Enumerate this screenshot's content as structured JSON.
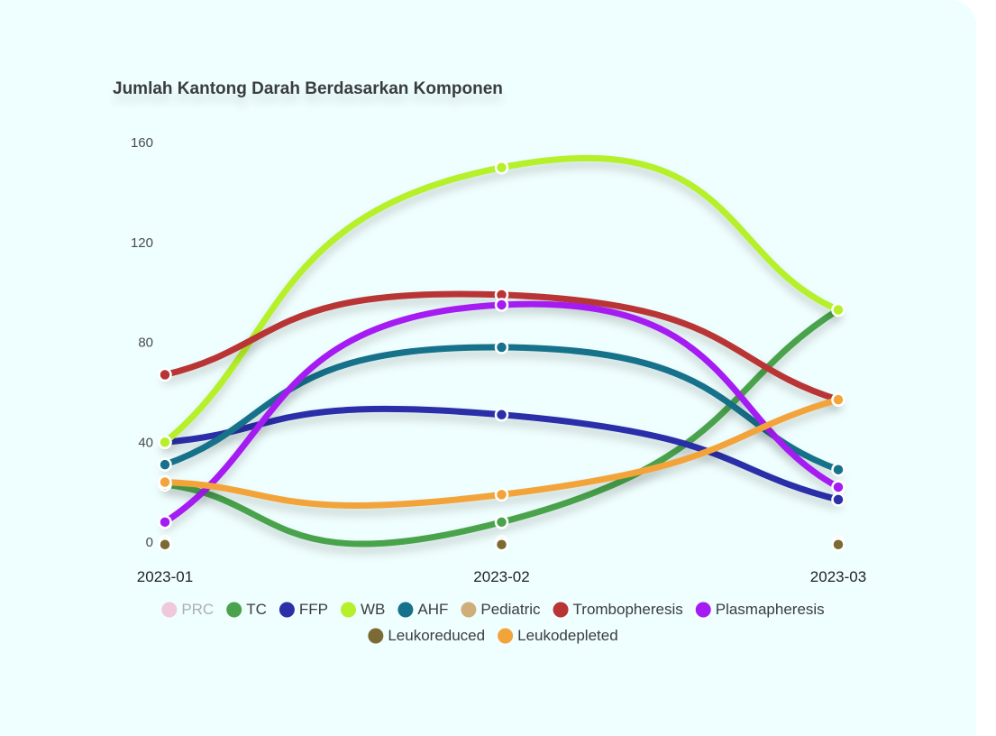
{
  "chart_data": {
    "type": "line",
    "title": "Jumlah Kantong Darah Berdasarkan Komponen",
    "xlabel": "",
    "ylabel": "",
    "categories": [
      "2023-01",
      "2023-02",
      "2023-03"
    ],
    "ylim": [
      0,
      160
    ],
    "yticks": [
      0,
      40,
      80,
      120,
      160
    ],
    "grid": false,
    "curve": "smooth",
    "legend_position": "bottom",
    "series": [
      {
        "name": "PRC",
        "color": "#f0c8dc",
        "hidden": true,
        "values": [
          0,
          0,
          0
        ]
      },
      {
        "name": "TC",
        "color": "#4aa34c",
        "hidden": false,
        "values": [
          23,
          8,
          93
        ]
      },
      {
        "name": "FFP",
        "color": "#2b2fa8",
        "hidden": false,
        "values": [
          40,
          51,
          17
        ]
      },
      {
        "name": "WB",
        "color": "#b5f02a",
        "hidden": false,
        "values": [
          40,
          150,
          93
        ]
      },
      {
        "name": "AHF",
        "color": "#16718a",
        "hidden": false,
        "values": [
          31,
          78,
          29
        ]
      },
      {
        "name": "Pediatric",
        "color": "#cfae7a",
        "hidden": false,
        "values": [
          0,
          0,
          0
        ]
      },
      {
        "name": "Trombopheresis",
        "color": "#b93434",
        "hidden": false,
        "values": [
          67,
          99,
          57
        ]
      },
      {
        "name": "Plasmapheresis",
        "color": "#a51cf2",
        "hidden": false,
        "values": [
          8,
          95,
          22
        ]
      },
      {
        "name": "Leukoreduced",
        "color": "#7b6a34",
        "hidden": false,
        "values": [
          -1,
          -1,
          -1
        ]
      },
      {
        "name": "Leukodepleted",
        "color": "#f2a43a",
        "hidden": false,
        "values": [
          24,
          19,
          57
        ]
      }
    ]
  }
}
